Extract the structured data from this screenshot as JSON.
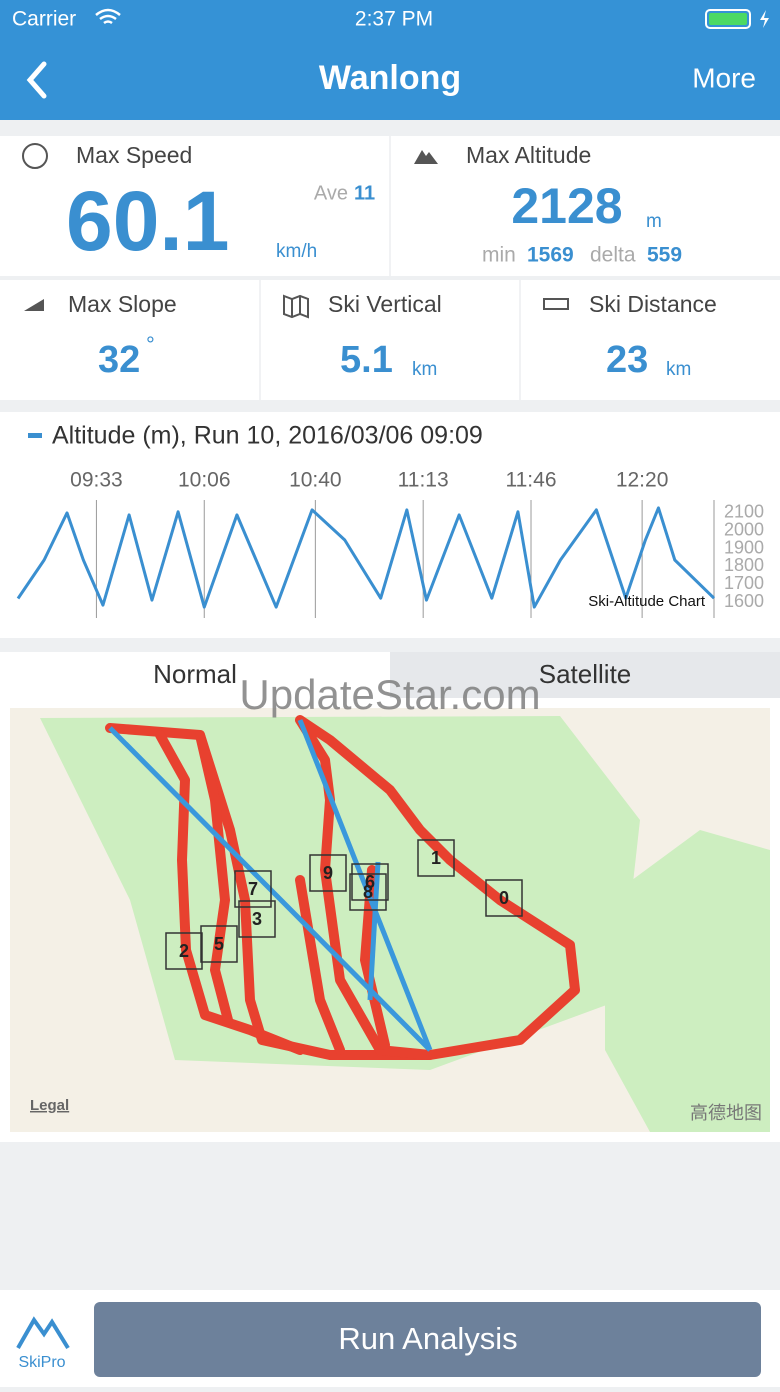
{
  "status_bar": {
    "carrier": "Carrier",
    "time": "2:37 PM"
  },
  "nav": {
    "title": "Wanlong",
    "action": "More"
  },
  "stats": {
    "max_speed": {
      "label": "Max Speed",
      "value": "60.1",
      "unit": "km/h",
      "ave_label": "Ave",
      "ave": "11"
    },
    "max_altitude": {
      "label": "Max Altitude",
      "value": "2128",
      "unit": "m",
      "min_label": "min",
      "min": "1569",
      "delta_label": "delta",
      "delta": "559"
    },
    "max_slope": {
      "label": "Max Slope",
      "value": "32",
      "unit": "°"
    },
    "ski_vertical": {
      "label": "Ski Vertical",
      "value": "5.1",
      "unit": "km"
    },
    "ski_distance": {
      "label": "Ski Distance",
      "value": "23",
      "unit": "km"
    }
  },
  "chart_data": {
    "type": "line",
    "annotation": "Ski-Altitude Chart",
    "x": [
      "09:09",
      "09:17",
      "09:24",
      "09:29",
      "09:35",
      "09:43",
      "09:50",
      "09:58",
      "10:06",
      "10:16",
      "10:28",
      "10:39",
      "10:49",
      "11:00",
      "11:08",
      "11:14",
      "11:24",
      "11:34",
      "11:42",
      "11:47",
      "11:55",
      "12:06",
      "12:15",
      "12:21",
      "12:25",
      "12:30",
      "12:42"
    ],
    "series": [
      {
        "name": "Altitude (m), Run 10, 2016/03/06 09:09",
        "color": "#3a8fd0",
        "values": [
          1620,
          1836,
          2100,
          1836,
          1583,
          2089,
          1611,
          2106,
          1572,
          2089,
          1572,
          2117,
          1948,
          1622,
          2117,
          1611,
          2089,
          1622,
          2106,
          1572,
          1836,
          2117,
          1622,
          1948,
          2128,
          1836,
          1622
        ]
      }
    ],
    "xlim": [
      "09:09",
      "12:42"
    ],
    "xticks": [
      "09:33",
      "10:06",
      "10:40",
      "11:13",
      "11:46",
      "12:20"
    ],
    "ylim": [
      1550,
      2150
    ],
    "yticks": [
      1600,
      1700,
      1800,
      1900,
      2000,
      2100
    ],
    "grid": true
  },
  "map": {
    "tabs": [
      "Normal",
      "Satellite"
    ],
    "watermark": "UpdateStar.com",
    "markers": [
      "0",
      "1",
      "2",
      "3",
      "5",
      "6",
      "7",
      "8",
      "9"
    ],
    "legal": "Legal",
    "provider": "高德地图"
  },
  "footer": {
    "brand": "SkiPro",
    "button": "Run Analysis"
  }
}
